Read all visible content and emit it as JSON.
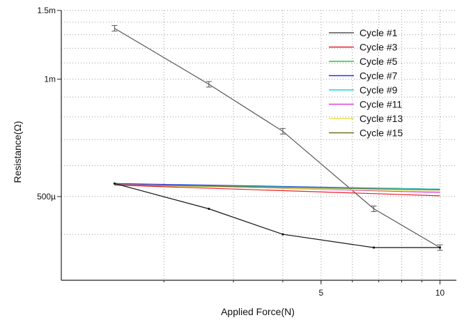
{
  "chart_data": {
    "type": "line",
    "title": "",
    "xlabel": "Applied Force(N)",
    "ylabel": "Resistance(Ω)",
    "x_scale": "log",
    "y_scale": "log",
    "xlim": [
      1.1,
      11.0
    ],
    "ylim": [
      0.000305,
      0.0015
    ],
    "grid": true,
    "legend_position": "top-right",
    "x_ticks": [
      {
        "value": 5,
        "label": "5"
      },
      {
        "value": 10,
        "label": "10"
      }
    ],
    "y_ticks": [
      {
        "value": 0.0005,
        "label": "500µ"
      },
      {
        "value": 0.001,
        "label": "1m"
      },
      {
        "value": 0.0015,
        "label": "1.5m"
      }
    ],
    "series": [
      {
        "name": "Cycle #1",
        "color": "#555555",
        "error_bars": true,
        "x": [
          1.5,
          2.6,
          4.0,
          6.8,
          10.0
        ],
        "y": [
          0.00135,
          0.00097,
          0.000735,
          0.000465,
          0.00037
        ]
      },
      {
        "name": "Cycle #3",
        "color": "#e8202a",
        "x": [
          1.5,
          10.0
        ],
        "y": [
          0.000535,
          0.000502
        ]
      },
      {
        "name": "Cycle #5",
        "color": "#28c828",
        "x": [
          1.5,
          10.0
        ],
        "y": [
          0.000535,
          0.000522
        ]
      },
      {
        "name": "Cycle #7",
        "color": "#3030d8",
        "x": [
          1.5,
          10.0
        ],
        "y": [
          0.00054,
          0.000522
        ]
      },
      {
        "name": "Cycle #9",
        "color": "#20d0d0",
        "x": [
          1.5,
          10.0
        ],
        "y": [
          0.000537,
          0.000522
        ]
      },
      {
        "name": "Cycle #11",
        "color": "#e040e0",
        "x": [
          1.5,
          10.0
        ],
        "y": [
          0.000538,
          0.000512
        ]
      },
      {
        "name": "Cycle #13",
        "color": "#e8e050",
        "x": [
          1.5,
          10.0
        ],
        "y": [
          0.000536,
          0.000515
        ]
      },
      {
        "name": "Cycle #15",
        "color": "#707020",
        "x": [
          1.5,
          10.0
        ],
        "y": [
          0.000536,
          0.00052
        ]
      },
      {
        "name": "",
        "color": "#111111",
        "x": [
          1.5,
          2.6,
          4.0,
          6.8,
          10.0
        ],
        "y": [
          0.00054,
          0.000465,
          0.0004,
          0.00037,
          0.00037
        ]
      }
    ]
  }
}
